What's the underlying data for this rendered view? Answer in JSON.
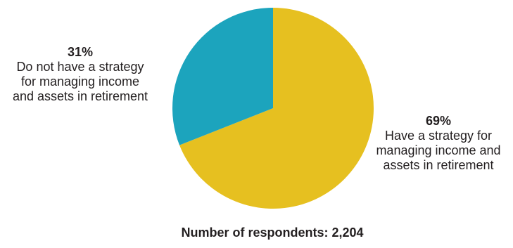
{
  "chart_data": {
    "type": "pie",
    "slices": [
      {
        "percent_label": "69%",
        "value": 69,
        "label_lines": [
          "Have a strategy for",
          "managing income and",
          "assets in retirement"
        ],
        "color": "#e6c020"
      },
      {
        "percent_label": "31%",
        "value": 31,
        "label_lines": [
          "Do not have a strategy",
          "for managing income",
          "and assets in retirement"
        ],
        "color": "#1ca4bd"
      }
    ],
    "start_angle_deg": 0,
    "direction": "clockwise"
  },
  "footnote": "Number of respondents: 2,204"
}
